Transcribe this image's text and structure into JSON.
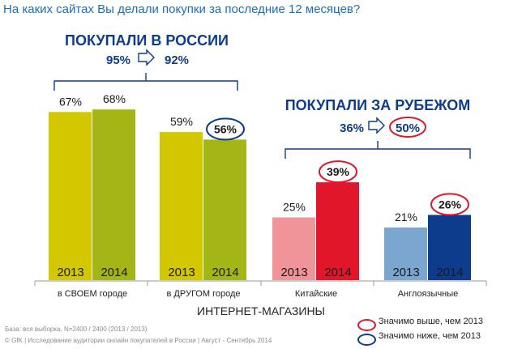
{
  "title": "На каких сайтах Вы делали покупки  за последние  12 месяцев?",
  "colors": {
    "yellow2013": "#d3c700",
    "green2014": "#a4b516",
    "pink2013": "#f0949a",
    "red2014": "#e2162b",
    "lightblue2013": "#7ba6cf",
    "navy2014": "#0d3c8c",
    "heading": "#0d3c8c",
    "highlight_red": "#e2162b",
    "highlight_blue": "#0d3c8c"
  },
  "groups": {
    "russia": {
      "heading": "ПОКУПАЛИ В РОССИИ",
      "from": "95%",
      "to": "92%"
    },
    "abroad": {
      "heading": "ПОКУПАЛИ ЗА РУБЕЖОМ",
      "from": "36%",
      "to": "50%"
    }
  },
  "chart_data": {
    "type": "bar",
    "categories": [
      "в СВОЕМ городе",
      "в ДРУГОМ городе",
      "Китайские",
      "Англоязычные"
    ],
    "xlabel": "ИНТЕРНЕТ-МАГАЗИНЫ",
    "ylim": [
      0,
      100
    ],
    "series": [
      {
        "name": "2013",
        "values": [
          67,
          59,
          25,
          21
        ]
      },
      {
        "name": "2014",
        "values": [
          68,
          56,
          39,
          26
        ]
      }
    ],
    "value_labels": [
      [
        "67%",
        "68%"
      ],
      [
        "59%",
        "56%"
      ],
      [
        "25%",
        "39%"
      ],
      [
        "21%",
        "26%"
      ]
    ],
    "highlights": [
      {
        "category": 1,
        "series": 1,
        "type": "below"
      },
      {
        "category": 2,
        "series": 1,
        "type": "above"
      },
      {
        "category": 3,
        "series": 1,
        "type": "above"
      }
    ],
    "bar_colors": [
      [
        "#d3c700",
        "#a4b516"
      ],
      [
        "#d3c700",
        "#a4b516"
      ],
      [
        "#f0949a",
        "#e2162b"
      ],
      [
        "#7ba6cf",
        "#0d3c8c"
      ]
    ]
  },
  "legend": {
    "above": "Значимо выше, чем 2013",
    "below": "Значимо ниже, чем 2013"
  },
  "footer": {
    "base": "База: вся выборка, N=2400 / 2400 (2013 / 2013)",
    "source": "© GfK | Исследование аудитории онлайн покупателей в России | Август - Сентябрь 2014"
  }
}
